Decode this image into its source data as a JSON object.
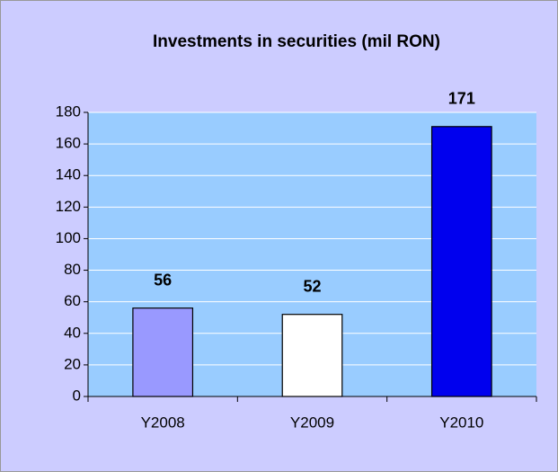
{
  "chart_data": {
    "type": "bar",
    "title": "Investments in securities (mil RON)",
    "categories": [
      "Y2008",
      "Y2009",
      "Y2010"
    ],
    "values": [
      56,
      52,
      171
    ],
    "colors": [
      "#9999ff",
      "#ffffff",
      "#0000ee"
    ],
    "ylim": [
      0,
      180
    ],
    "yticks": [
      0,
      20,
      40,
      60,
      80,
      100,
      120,
      140,
      160,
      180
    ],
    "grid": true
  }
}
